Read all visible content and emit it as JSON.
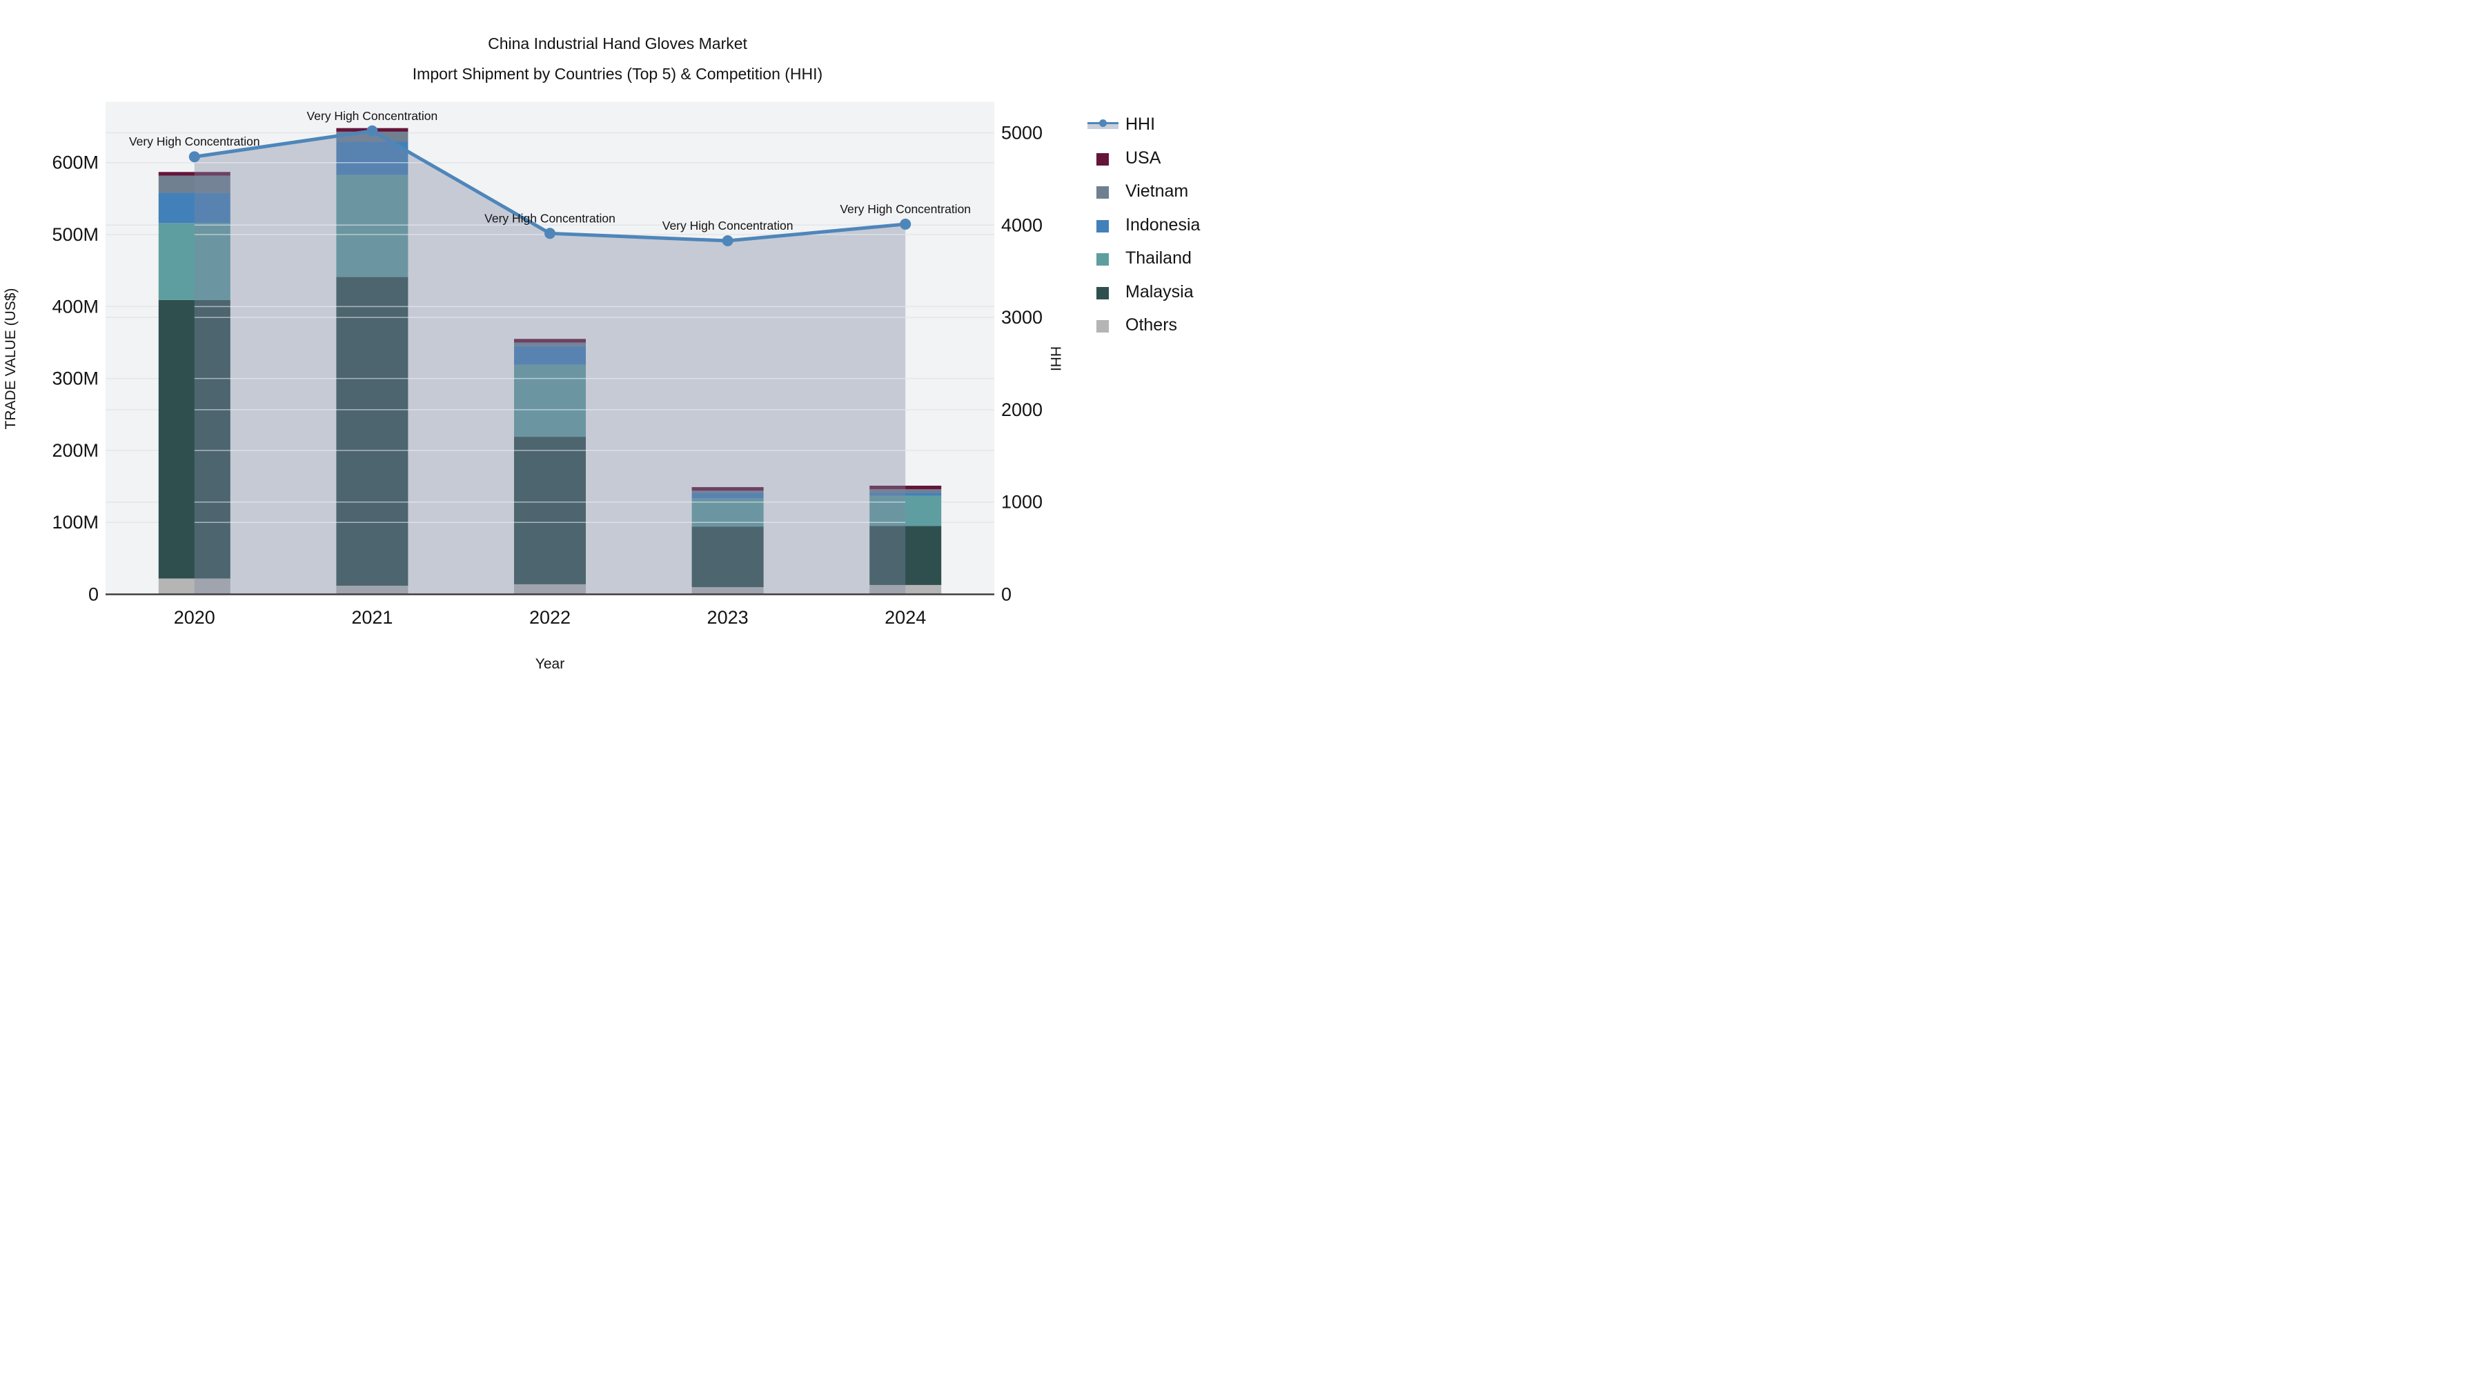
{
  "title": {
    "line1": "China Industrial Hand Gloves Market",
    "line2": "Import Shipment by Countries (Top 5) & Competition (HHI)"
  },
  "chart_data": {
    "type": "combo: stacked bar (trade value) + line with filled area (HHI, right axis)",
    "categories": [
      "2020",
      "2021",
      "2022",
      "2023",
      "2024"
    ],
    "unit": "US$ millions",
    "series": [
      {
        "name": "Others",
        "color": "#b5b5b5",
        "values": [
          22,
          12,
          14,
          10,
          13
        ]
      },
      {
        "name": "Malaysia",
        "color": "#2f4f4f",
        "values": [
          387,
          429,
          205,
          84,
          82
        ]
      },
      {
        "name": "Thailand",
        "color": "#5f9ea0",
        "values": [
          107,
          142,
          100,
          39,
          42
        ]
      },
      {
        "name": "Indonesia",
        "color": "#4280ba",
        "values": [
          42,
          46,
          26,
          8,
          4
        ]
      },
      {
        "name": "Vietnam",
        "color": "#708090",
        "values": [
          24,
          14,
          5,
          3,
          5
        ]
      },
      {
        "name": "USA",
        "color": "#65153a",
        "values": [
          5,
          5,
          5,
          5,
          5
        ]
      }
    ],
    "totals": [
      587,
      648,
      355,
      149,
      151
    ],
    "line": {
      "name": "HHI",
      "color": "#4e86ba",
      "values": [
        4740,
        5020,
        3910,
        3830,
        4010
      ],
      "area_color": "rgba(126,137,164,0.38)"
    },
    "annotations": [
      "Very High Concentration",
      "Very High Concentration",
      "Very High Concentration",
      "Very High Concentration",
      "Very High Concentration"
    ],
    "x_axis": {
      "label": "Year"
    },
    "y_left": {
      "label": "TRADE VALUE (US$)",
      "tick_labels": [
        "0",
        "100M",
        "200M",
        "300M",
        "400M",
        "500M",
        "600M"
      ],
      "tick_values": [
        0,
        100,
        200,
        300,
        400,
        500,
        600
      ],
      "range": [
        0,
        684.6
      ]
    },
    "y_right": {
      "label": "HHI",
      "tick_labels": [
        "0",
        "1000",
        "2000",
        "3000",
        "4000",
        "5000"
      ],
      "tick_values": [
        0,
        1000,
        2000,
        3000,
        4000,
        5000
      ],
      "range": [
        0,
        5336
      ]
    },
    "legend": [
      {
        "label": "HHI",
        "type": "line",
        "color": "#4e86ba"
      },
      {
        "label": "USA",
        "type": "swatch",
        "color": "#65153a"
      },
      {
        "label": "Vietnam",
        "type": "swatch",
        "color": "#708090"
      },
      {
        "label": "Indonesia",
        "type": "swatch",
        "color": "#4280ba"
      },
      {
        "label": "Thailand",
        "type": "swatch",
        "color": "#5f9ea0"
      },
      {
        "label": "Malaysia",
        "type": "swatch",
        "color": "#2f4f4f"
      },
      {
        "label": "Others",
        "type": "swatch",
        "color": "#b5b5b5"
      }
    ],
    "grid": true,
    "legend_position": "right",
    "plot_bg": "#f2f3f4",
    "grid_color": "#e3e6ea",
    "axis_line_color": "#3f3f3f"
  }
}
